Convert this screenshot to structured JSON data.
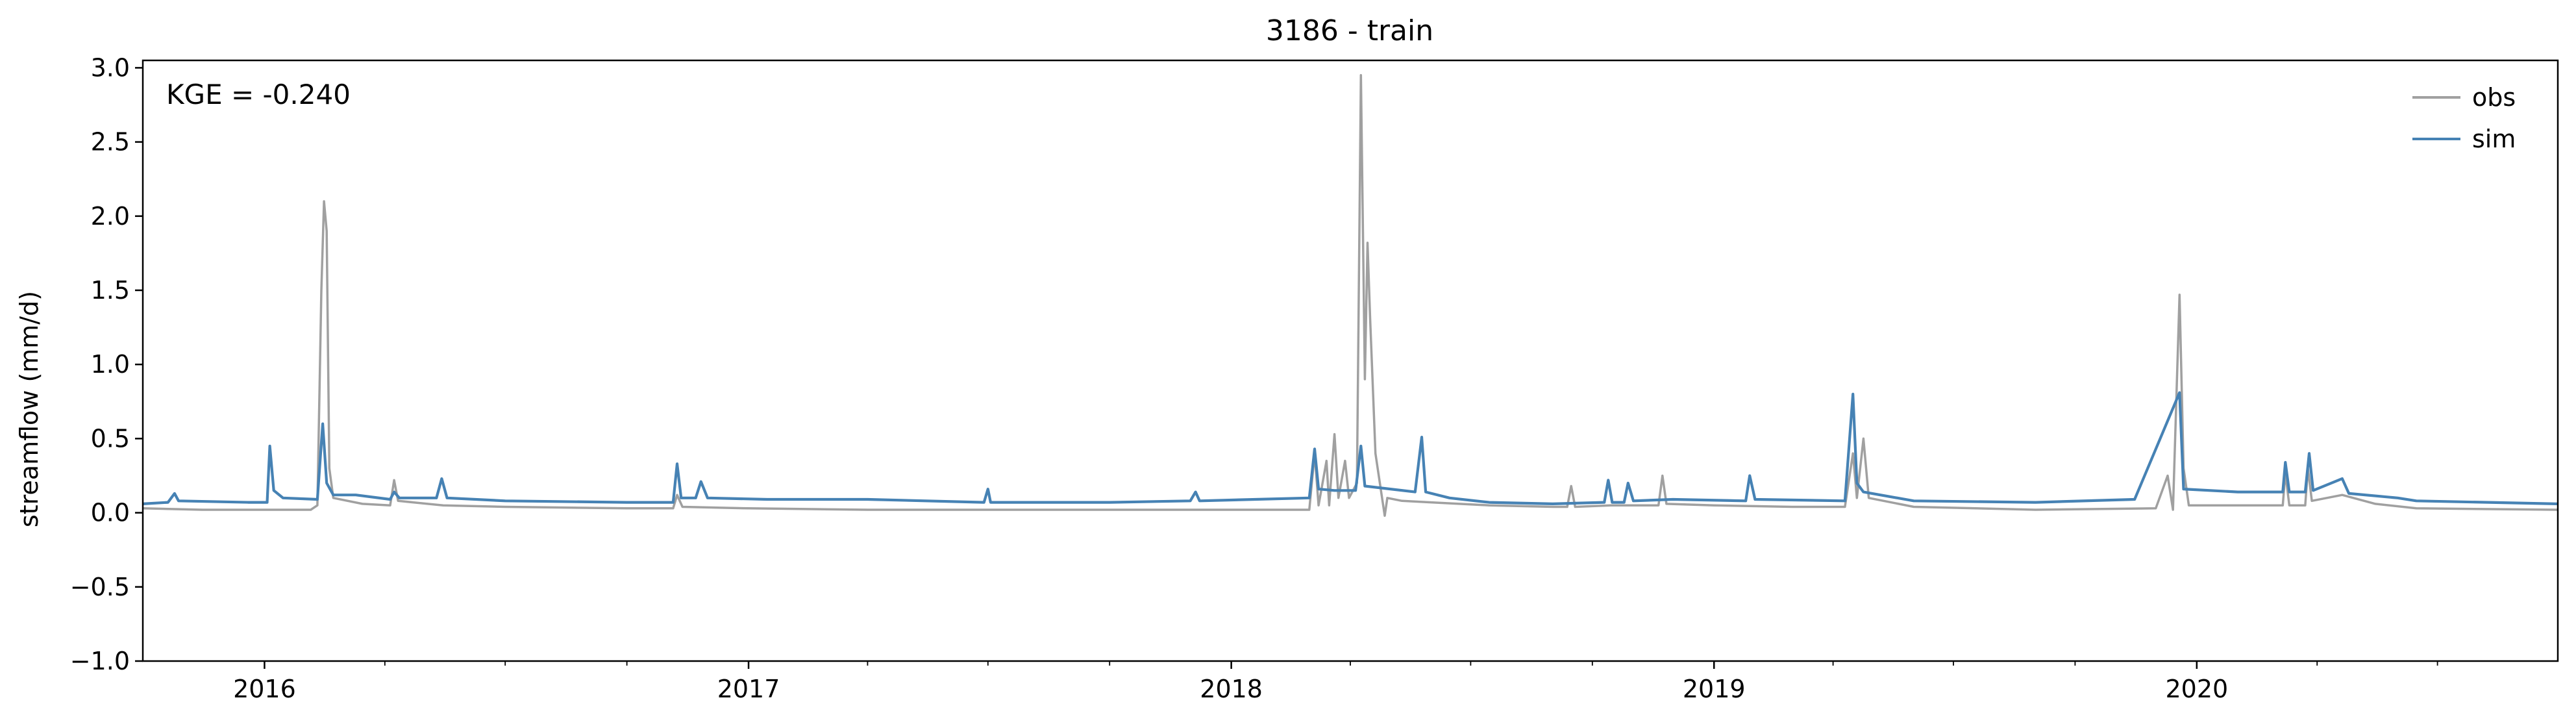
{
  "chart_data": {
    "type": "line",
    "title": "3186 - train",
    "xlabel": "",
    "ylabel": "streamflow (mm/d)",
    "ylim": [
      -1.0,
      3.05
    ],
    "xlim": [
      "2015-10-01",
      "2020-09-30"
    ],
    "yticks": [
      -1.0,
      -0.5,
      0.0,
      0.5,
      1.0,
      1.5,
      2.0,
      2.5,
      3.0
    ],
    "ytick_labels": [
      "−1.0",
      "−0.5",
      "0.0",
      "0.5",
      "1.0",
      "1.5",
      "2.0",
      "2.5",
      "3.0"
    ],
    "xticks": [
      "2016-01-01",
      "2017-01-01",
      "2018-01-01",
      "2019-01-01",
      "2020-01-01"
    ],
    "xtick_labels": [
      "2016",
      "2017",
      "2018",
      "2019",
      "2020"
    ],
    "annotation": "KGE = -0.240",
    "grid": false,
    "legend_position": "top-right",
    "series": [
      {
        "name": "obs",
        "color": "#a0a0a0",
        "points": [
          [
            "2015-10-01",
            0.03
          ],
          [
            "2015-11-15",
            0.02
          ],
          [
            "2016-01-01",
            0.02
          ],
          [
            "2016-02-05",
            0.02
          ],
          [
            "2016-02-10",
            0.05
          ],
          [
            "2016-02-13",
            1.5
          ],
          [
            "2016-02-15",
            2.1
          ],
          [
            "2016-02-17",
            1.9
          ],
          [
            "2016-02-19",
            0.3
          ],
          [
            "2016-02-22",
            0.1
          ],
          [
            "2016-03-15",
            0.06
          ],
          [
            "2016-04-05",
            0.05
          ],
          [
            "2016-04-08",
            0.22
          ],
          [
            "2016-04-11",
            0.08
          ],
          [
            "2016-05-15",
            0.05
          ],
          [
            "2016-07-01",
            0.04
          ],
          [
            "2016-10-01",
            0.03
          ],
          [
            "2016-11-05",
            0.03
          ],
          [
            "2016-11-08",
            0.12
          ],
          [
            "2016-11-12",
            0.04
          ],
          [
            "2017-01-01",
            0.03
          ],
          [
            "2017-04-01",
            0.02
          ],
          [
            "2017-07-01",
            0.02
          ],
          [
            "2017-10-01",
            0.02
          ],
          [
            "2018-01-01",
            0.02
          ],
          [
            "2018-03-01",
            0.02
          ],
          [
            "2018-03-05",
            0.4
          ],
          [
            "2018-03-08",
            0.05
          ],
          [
            "2018-03-14",
            0.35
          ],
          [
            "2018-03-16",
            0.05
          ],
          [
            "2018-03-20",
            0.53
          ],
          [
            "2018-03-23",
            0.1
          ],
          [
            "2018-03-28",
            0.35
          ],
          [
            "2018-03-31",
            0.1
          ],
          [
            "2018-04-06",
            0.2
          ],
          [
            "2018-04-09",
            2.95
          ],
          [
            "2018-04-12",
            0.9
          ],
          [
            "2018-04-14",
            1.82
          ],
          [
            "2018-04-16",
            1.3
          ],
          [
            "2018-04-20",
            0.4
          ],
          [
            "2018-04-25",
            0.1
          ],
          [
            "2018-04-27",
            -0.02
          ],
          [
            "2018-04-29",
            0.1
          ],
          [
            "2018-05-10",
            0.08
          ],
          [
            "2018-06-01",
            0.07
          ],
          [
            "2018-07-15",
            0.05
          ],
          [
            "2018-09-01",
            0.04
          ],
          [
            "2018-09-12",
            0.04
          ],
          [
            "2018-09-15",
            0.18
          ],
          [
            "2018-09-18",
            0.04
          ],
          [
            "2018-10-15",
            0.05
          ],
          [
            "2018-11-20",
            0.05
          ],
          [
            "2018-11-23",
            0.25
          ],
          [
            "2018-11-26",
            0.06
          ],
          [
            "2019-01-01",
            0.05
          ],
          [
            "2019-03-01",
            0.04
          ],
          [
            "2019-04-10",
            0.04
          ],
          [
            "2019-04-16",
            0.4
          ],
          [
            "2019-04-19",
            0.1
          ],
          [
            "2019-04-24",
            0.5
          ],
          [
            "2019-04-28",
            0.1
          ],
          [
            "2019-06-01",
            0.04
          ],
          [
            "2019-09-01",
            0.02
          ],
          [
            "2019-12-01",
            0.03
          ],
          [
            "2019-12-10",
            0.25
          ],
          [
            "2019-12-14",
            0.02
          ],
          [
            "2019-12-19",
            1.47
          ],
          [
            "2019-12-22",
            0.3
          ],
          [
            "2019-12-26",
            0.05
          ],
          [
            "2020-02-01",
            0.05
          ],
          [
            "2020-03-06",
            0.05
          ],
          [
            "2020-03-08",
            0.27
          ],
          [
            "2020-03-11",
            0.05
          ],
          [
            "2020-03-23",
            0.05
          ],
          [
            "2020-03-25",
            0.3
          ],
          [
            "2020-03-28",
            0.08
          ],
          [
            "2020-04-20",
            0.12
          ],
          [
            "2020-05-15",
            0.06
          ],
          [
            "2020-06-15",
            0.03
          ],
          [
            "2020-09-30",
            0.02
          ]
        ]
      },
      {
        "name": "sim",
        "color": "#4682b4",
        "points": [
          [
            "2015-10-01",
            0.06
          ],
          [
            "2015-10-20",
            0.07
          ],
          [
            "2015-10-25",
            0.13
          ],
          [
            "2015-10-28",
            0.08
          ],
          [
            "2015-12-20",
            0.07
          ],
          [
            "2016-01-03",
            0.07
          ],
          [
            "2016-01-05",
            0.45
          ],
          [
            "2016-01-08",
            0.15
          ],
          [
            "2016-01-15",
            0.1
          ],
          [
            "2016-02-10",
            0.09
          ],
          [
            "2016-02-14",
            0.6
          ],
          [
            "2016-02-17",
            0.2
          ],
          [
            "2016-02-22",
            0.12
          ],
          [
            "2016-03-10",
            0.12
          ],
          [
            "2016-04-05",
            0.09
          ],
          [
            "2016-04-08",
            0.14
          ],
          [
            "2016-04-12",
            0.1
          ],
          [
            "2016-05-10",
            0.1
          ],
          [
            "2016-05-14",
            0.23
          ],
          [
            "2016-05-18",
            0.1
          ],
          [
            "2016-07-01",
            0.08
          ],
          [
            "2016-10-01",
            0.07
          ],
          [
            "2016-11-05",
            0.07
          ],
          [
            "2016-11-08",
            0.33
          ],
          [
            "2016-11-11",
            0.1
          ],
          [
            "2016-11-22",
            0.1
          ],
          [
            "2016-11-26",
            0.21
          ],
          [
            "2016-12-01",
            0.1
          ],
          [
            "2017-01-15",
            0.09
          ],
          [
            "2017-04-01",
            0.09
          ],
          [
            "2017-06-28",
            0.07
          ],
          [
            "2017-07-01",
            0.16
          ],
          [
            "2017-07-03",
            0.07
          ],
          [
            "2017-10-01",
            0.07
          ],
          [
            "2017-12-01",
            0.08
          ],
          [
            "2017-12-05",
            0.14
          ],
          [
            "2017-12-08",
            0.08
          ],
          [
            "2018-03-01",
            0.1
          ],
          [
            "2018-03-05",
            0.43
          ],
          [
            "2018-03-08",
            0.16
          ],
          [
            "2018-03-20",
            0.15
          ],
          [
            "2018-04-05",
            0.15
          ],
          [
            "2018-04-09",
            0.45
          ],
          [
            "2018-04-12",
            0.18
          ],
          [
            "2018-05-20",
            0.14
          ],
          [
            "2018-05-25",
            0.51
          ],
          [
            "2018-05-28",
            0.14
          ],
          [
            "2018-06-15",
            0.1
          ],
          [
            "2018-07-15",
            0.07
          ],
          [
            "2018-09-01",
            0.06
          ],
          [
            "2018-10-10",
            0.07
          ],
          [
            "2018-10-13",
            0.22
          ],
          [
            "2018-10-16",
            0.07
          ],
          [
            "2018-10-25",
            0.07
          ],
          [
            "2018-10-28",
            0.2
          ],
          [
            "2018-11-01",
            0.08
          ],
          [
            "2018-12-01",
            0.09
          ],
          [
            "2019-01-25",
            0.08
          ],
          [
            "2019-01-28",
            0.25
          ],
          [
            "2019-02-01",
            0.09
          ],
          [
            "2019-04-10",
            0.08
          ],
          [
            "2019-04-16",
            0.8
          ],
          [
            "2019-04-19",
            0.2
          ],
          [
            "2019-04-24",
            0.14
          ],
          [
            "2019-06-01",
            0.08
          ],
          [
            "2019-09-01",
            0.07
          ],
          [
            "2019-11-15",
            0.09
          ],
          [
            "2019-12-19",
            0.81
          ],
          [
            "2019-12-22",
            0.16
          ],
          [
            "2020-02-01",
            0.14
          ],
          [
            "2020-03-06",
            0.14
          ],
          [
            "2020-03-08",
            0.34
          ],
          [
            "2020-03-11",
            0.14
          ],
          [
            "2020-03-23",
            0.14
          ],
          [
            "2020-03-26",
            0.4
          ],
          [
            "2020-03-29",
            0.15
          ],
          [
            "2020-04-20",
            0.23
          ],
          [
            "2020-04-25",
            0.13
          ],
          [
            "2020-06-01",
            0.1
          ],
          [
            "2020-06-15",
            0.08
          ],
          [
            "2020-09-30",
            0.06
          ]
        ]
      }
    ]
  }
}
